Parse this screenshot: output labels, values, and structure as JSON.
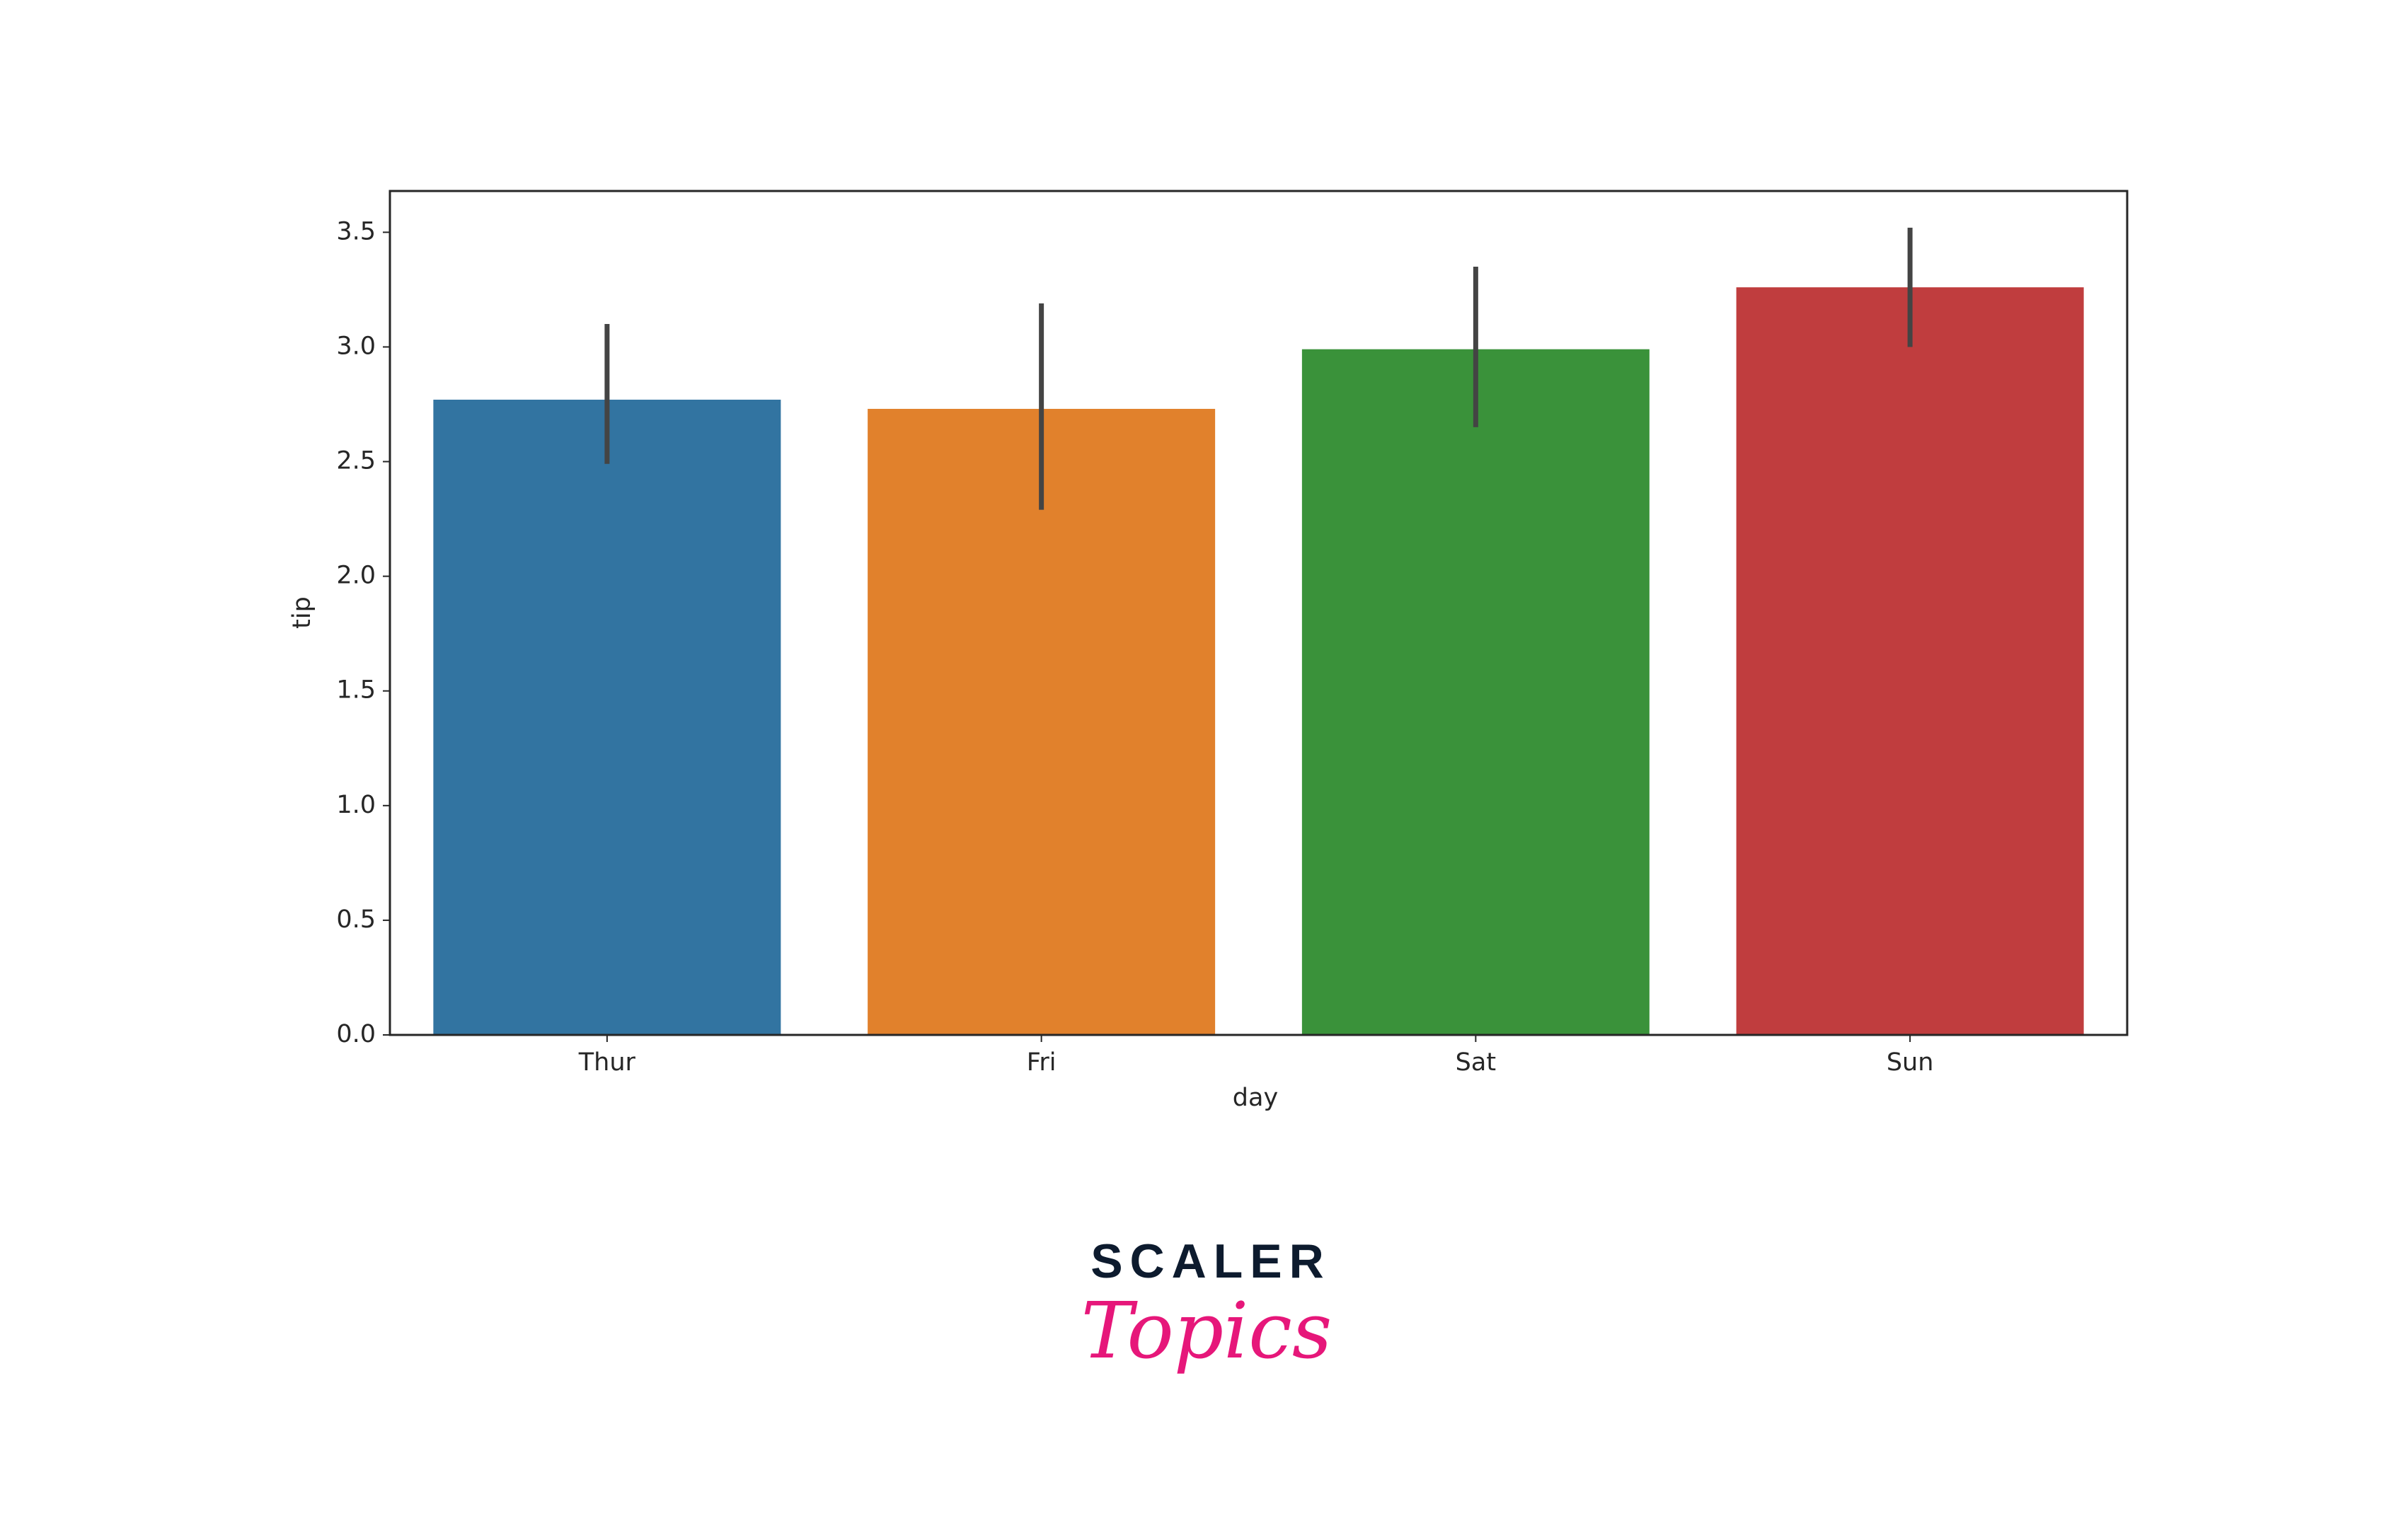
{
  "chart_data": {
    "type": "bar",
    "x_label": "day",
    "y_label": "tip",
    "categories": [
      "Thur",
      "Fri",
      "Sat",
      "Sun"
    ],
    "values": [
      2.77,
      2.73,
      2.99,
      3.26
    ],
    "ci_lower": [
      2.49,
      2.29,
      2.65,
      3.0
    ],
    "ci_upper": [
      3.1,
      3.19,
      3.35,
      3.52
    ],
    "colors": [
      "#3274a1",
      "#e1812c",
      "#3a923a",
      "#c03d3e"
    ],
    "error_color": "#444444",
    "ylim": [
      0,
      3.68
    ],
    "yticks": [
      {
        "value": 0,
        "label": "0.0"
      },
      0.5,
      {
        "value": 1,
        "label": "1.0"
      },
      1.5,
      {
        "value": 2,
        "label": "2.0"
      },
      2.5,
      {
        "value": 3,
        "label": "3.0"
      },
      3.5
    ],
    "grid": false
  },
  "logo": {
    "brand": "SCALER",
    "sub": "Topics"
  }
}
